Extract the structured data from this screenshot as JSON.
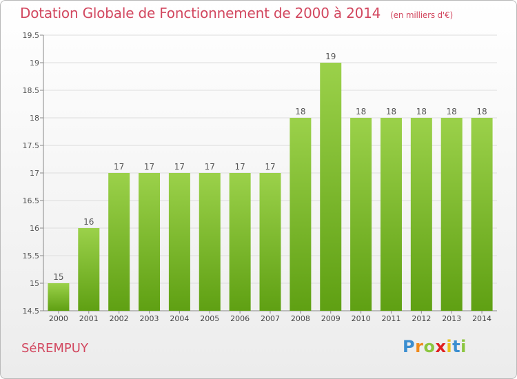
{
  "title": "Dotation Globale de Fonctionnement de 2000 à 2014",
  "unit_label": "(en milliers d'€)",
  "commune": "SéREMPUY",
  "brand": {
    "letters": [
      "P",
      "r",
      "o",
      "x",
      "i",
      "t",
      "i"
    ],
    "colors": [
      "#3b8ed0",
      "#f08a1c",
      "#8cc63f",
      "#e02020",
      "#e8c21c",
      "#3b8ed0",
      "#8cc63f"
    ]
  },
  "colors": {
    "bar_top": "#9bd14a",
    "bar_bottom": "#5fa013",
    "title": "#d2475f",
    "axis": "#888888",
    "grid": "#dddddd"
  },
  "chart_data": {
    "type": "bar",
    "title": "Dotation Globale de Fonctionnement de 2000 à 2014",
    "xlabel": "",
    "ylabel": "",
    "categories": [
      "2000",
      "2001",
      "2002",
      "2003",
      "2004",
      "2005",
      "2006",
      "2007",
      "2008",
      "2009",
      "2010",
      "2011",
      "2012",
      "2013",
      "2014"
    ],
    "values": [
      15,
      16,
      17,
      17,
      17,
      17,
      17,
      17,
      18,
      19,
      18,
      18,
      18,
      18,
      18
    ],
    "data_labels": [
      "15",
      "16",
      "17",
      "17",
      "17",
      "17",
      "17",
      "17",
      "18",
      "19",
      "18",
      "18",
      "18",
      "18",
      "18"
    ],
    "ylim": [
      14.5,
      19.5
    ],
    "yticks": [
      14.5,
      15,
      15.5,
      16,
      16.5,
      17,
      17.5,
      18,
      18.5,
      19,
      19.5
    ],
    "ytick_labels": [
      "14.5",
      "15",
      "15.5",
      "16",
      "16.5",
      "17",
      "17.5",
      "18",
      "18.5",
      "19",
      "19.5"
    ],
    "grid": true
  }
}
